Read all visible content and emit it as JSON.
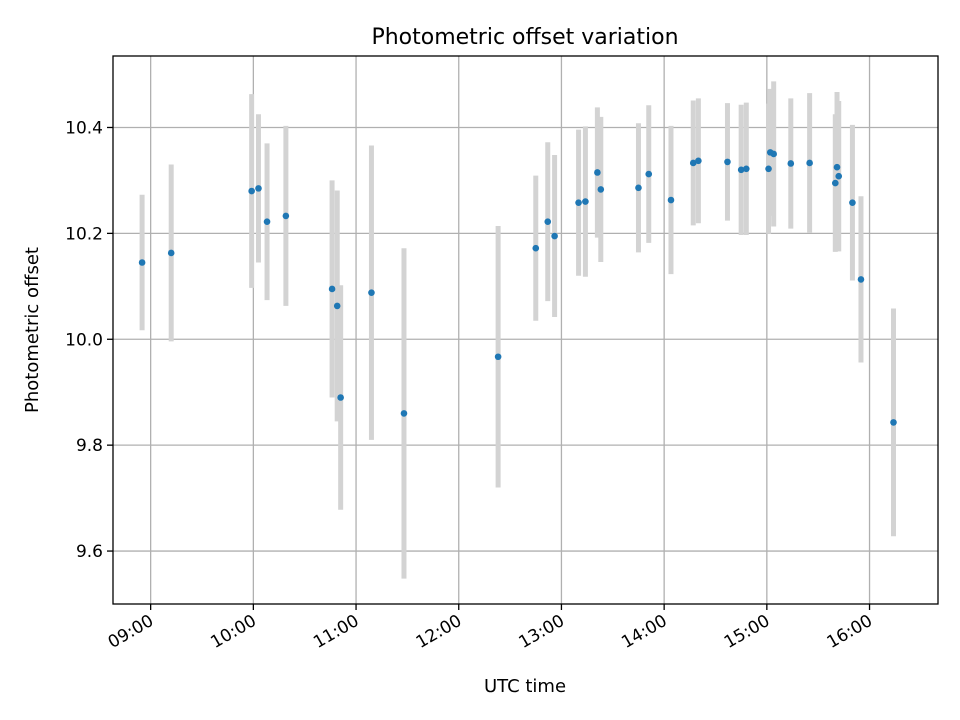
{
  "chart_data": {
    "type": "scatter",
    "title": "Photometric offset variation",
    "xlabel": "UTC time",
    "ylabel": "Photometric offset",
    "x_unit": "UTC time (HH:MM)",
    "xlim": [
      "08:38",
      "16:40"
    ],
    "ylim": [
      9.5,
      10.535
    ],
    "x_ticks": [
      "09:00",
      "10:00",
      "11:00",
      "12:00",
      "13:00",
      "14:00",
      "15:00",
      "16:00"
    ],
    "y_ticks": [
      9.6,
      9.8,
      10.0,
      10.2,
      10.4
    ],
    "y_tick_labels": [
      "9.6",
      "9.8",
      "10.0",
      "10.2",
      "10.4"
    ],
    "grid": true,
    "legend": "none",
    "colors": {
      "marker": "#1f77b4",
      "errorbar": "#d3d3d3",
      "grid": "#b0b0b0"
    },
    "points": [
      {
        "x": "08:55",
        "y": 10.145,
        "err": 0.128
      },
      {
        "x": "09:12",
        "y": 10.163,
        "err": 0.167
      },
      {
        "x": "09:59",
        "y": 10.28,
        "err": 0.183
      },
      {
        "x": "10:03",
        "y": 10.285,
        "err": 0.14
      },
      {
        "x": "10:08",
        "y": 10.222,
        "err": 0.148
      },
      {
        "x": "10:19",
        "y": 10.233,
        "err": 0.17
      },
      {
        "x": "10:46",
        "y": 10.095,
        "err": 0.205
      },
      {
        "x": "10:49",
        "y": 10.063,
        "err": 0.218
      },
      {
        "x": "10:51",
        "y": 9.89,
        "err": 0.212
      },
      {
        "x": "11:09",
        "y": 10.088,
        "err": 0.278
      },
      {
        "x": "11:28",
        "y": 9.86,
        "err": 0.312
      },
      {
        "x": "12:23",
        "y": 9.967,
        "err": 0.247
      },
      {
        "x": "12:45",
        "y": 10.172,
        "err": 0.137
      },
      {
        "x": "12:52",
        "y": 10.222,
        "err": 0.15
      },
      {
        "x": "12:56",
        "y": 10.195,
        "err": 0.153
      },
      {
        "x": "13:10",
        "y": 10.258,
        "err": 0.138
      },
      {
        "x": "13:14",
        "y": 10.26,
        "err": 0.142
      },
      {
        "x": "13:21",
        "y": 10.315,
        "err": 0.123
      },
      {
        "x": "13:23",
        "y": 10.283,
        "err": 0.137
      },
      {
        "x": "13:45",
        "y": 10.286,
        "err": 0.122
      },
      {
        "x": "13:51",
        "y": 10.312,
        "err": 0.13
      },
      {
        "x": "14:04",
        "y": 10.263,
        "err": 0.14
      },
      {
        "x": "14:17",
        "y": 10.333,
        "err": 0.118
      },
      {
        "x": "14:20",
        "y": 10.337,
        "err": 0.118
      },
      {
        "x": "14:37",
        "y": 10.335,
        "err": 0.111
      },
      {
        "x": "14:45",
        "y": 10.32,
        "err": 0.123
      },
      {
        "x": "14:48",
        "y": 10.322,
        "err": 0.125
      },
      {
        "x": "15:01",
        "y": 10.322,
        "err": 0.123
      },
      {
        "x": "15:02",
        "y": 10.353,
        "err": 0.12
      },
      {
        "x": "15:04",
        "y": 10.35,
        "err": 0.137
      },
      {
        "x": "15:14",
        "y": 10.332,
        "err": 0.123
      },
      {
        "x": "15:25",
        "y": 10.333,
        "err": 0.132
      },
      {
        "x": "15:40",
        "y": 10.295,
        "err": 0.13
      },
      {
        "x": "15:41",
        "y": 10.325,
        "err": 0.142
      },
      {
        "x": "15:42",
        "y": 10.308,
        "err": 0.142
      },
      {
        "x": "15:50",
        "y": 10.258,
        "err": 0.147
      },
      {
        "x": "15:55",
        "y": 10.113,
        "err": 0.157
      },
      {
        "x": "16:14",
        "y": 9.843,
        "err": 0.215
      }
    ]
  }
}
